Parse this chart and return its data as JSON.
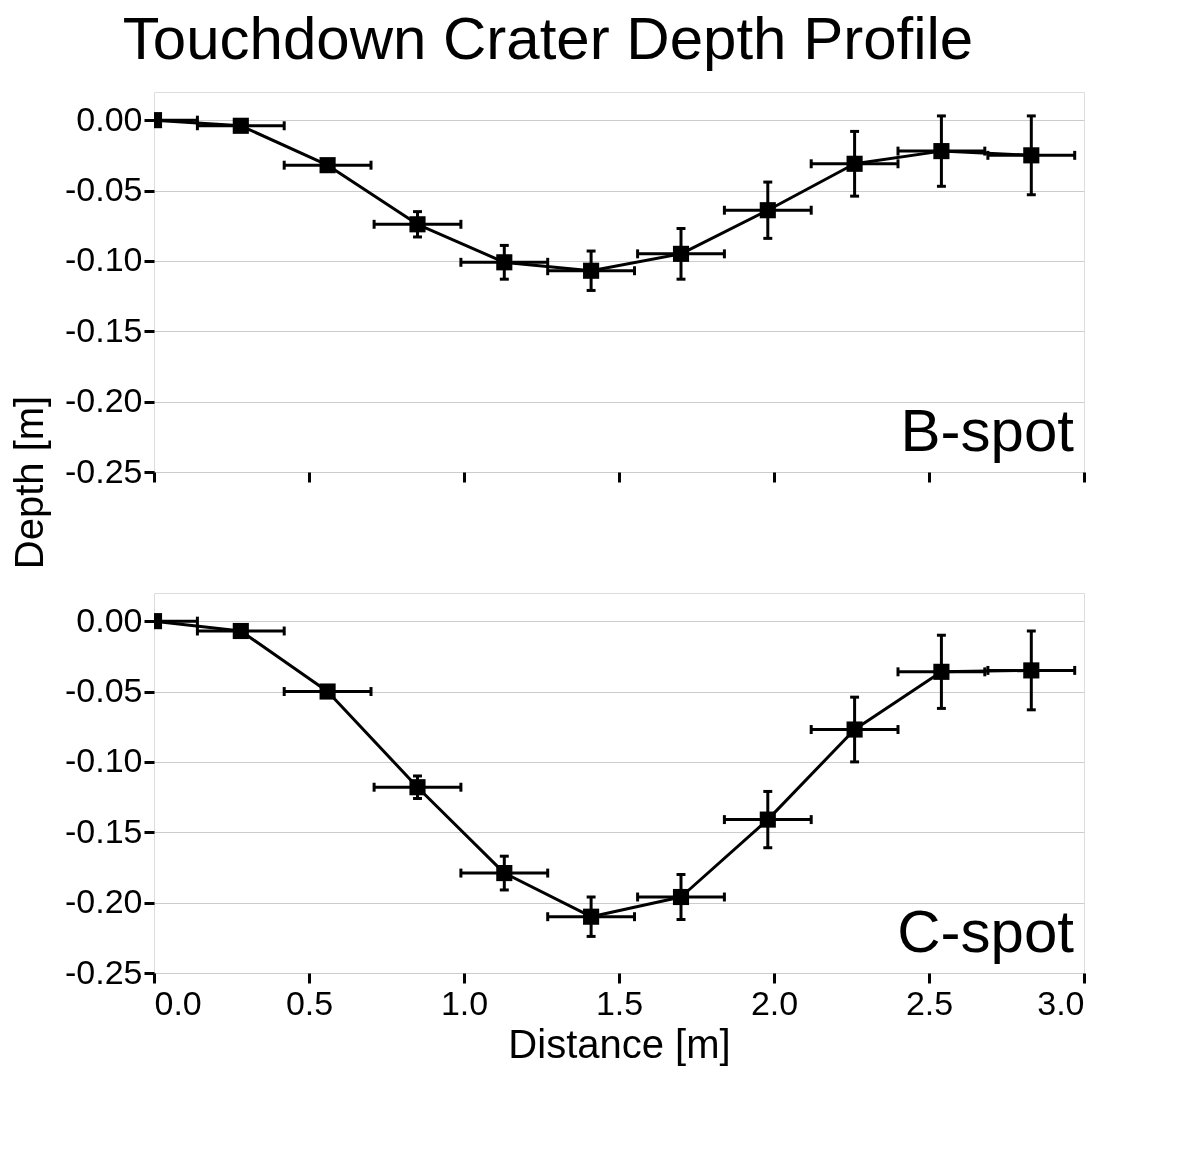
{
  "chart_data": [
    {
      "type": "line",
      "title": "Touchdown Crater Depth Profile",
      "ylabel": "Depth [m]",
      "annotations": [
        "B-spot"
      ],
      "x": [
        0,
        0.28,
        0.56,
        0.85,
        1.13,
        1.41,
        1.7,
        1.98,
        2.26,
        2.54,
        2.83
      ],
      "series": [
        {
          "color": "#000000",
          "values": [
            0,
            -0.004,
            -0.032,
            -0.074,
            -0.101,
            -0.107,
            -0.095,
            -0.064,
            -0.031,
            -0.022,
            -0.025
          ],
          "errors": [
            null,
            null,
            0.004,
            0.009,
            0.012,
            0.014,
            0.018,
            0.02,
            0.023,
            0.025,
            0.028
          ],
          "xerrors": [
            0.14,
            0.14,
            0.14,
            0.14,
            0.14,
            0.14,
            0.14,
            0.14,
            0.14,
            0.14,
            0.14
          ]
        }
      ],
      "xlim": [
        0,
        3.0
      ],
      "xticks": [
        0,
        0.5,
        1,
        1.5,
        2,
        2.5,
        3
      ],
      "ylim": [
        -0.25,
        0.02
      ],
      "yticks": [
        {
          "value": 0,
          "label": "0.00"
        },
        {
          "value": -0.05,
          "label": "-0.05"
        },
        {
          "value": -0.1,
          "label": "-0.10"
        },
        {
          "value": -0.15,
          "label": "-0.15"
        },
        {
          "value": -0.2,
          "label": "-0.20"
        },
        {
          "value": -0.25,
          "label": "-0.25"
        }
      ],
      "tick_labels": "y",
      "grid": "y",
      "marker": "square",
      "line_style": "solid"
    },
    {
      "type": "line",
      "xlabel": "Distance [m]",
      "annotations": [
        "C-spot"
      ],
      "x": [
        0,
        0.28,
        0.56,
        0.85,
        1.13,
        1.41,
        1.7,
        1.98,
        2.26,
        2.54,
        2.83
      ],
      "series": [
        {
          "color": "#000000",
          "values": [
            0,
            -0.007,
            -0.05,
            -0.118,
            -0.179,
            -0.21,
            -0.196,
            -0.141,
            -0.077,
            -0.036,
            -0.035
          ],
          "errors": [
            null,
            null,
            null,
            0.008,
            0.012,
            0.014,
            0.016,
            0.02,
            0.023,
            0.026,
            0.028
          ],
          "xerrors": [
            0.14,
            0.14,
            0.14,
            0.14,
            0.14,
            0.14,
            0.14,
            0.14,
            0.14,
            0.14,
            0.14
          ]
        }
      ],
      "xlim": [
        0,
        3.0
      ],
      "xticks": [
        {
          "value": 0,
          "label": "0.0"
        },
        0.5,
        {
          "value": 1,
          "label": "1.0"
        },
        1.5,
        {
          "value": 2,
          "label": "2.0"
        },
        2.5,
        {
          "value": 3,
          "label": "3.0"
        }
      ],
      "ylim": [
        -0.25,
        0.02
      ],
      "yticks": [
        {
          "value": 0,
          "label": "0.00"
        },
        {
          "value": -0.05,
          "label": "-0.05"
        },
        {
          "value": -0.1,
          "label": "-0.10"
        },
        {
          "value": -0.15,
          "label": "-0.15"
        },
        {
          "value": -0.2,
          "label": "-0.20"
        },
        {
          "value": -0.25,
          "label": "-0.25"
        }
      ],
      "grid": "y",
      "marker": "square",
      "line_style": "solid"
    }
  ]
}
